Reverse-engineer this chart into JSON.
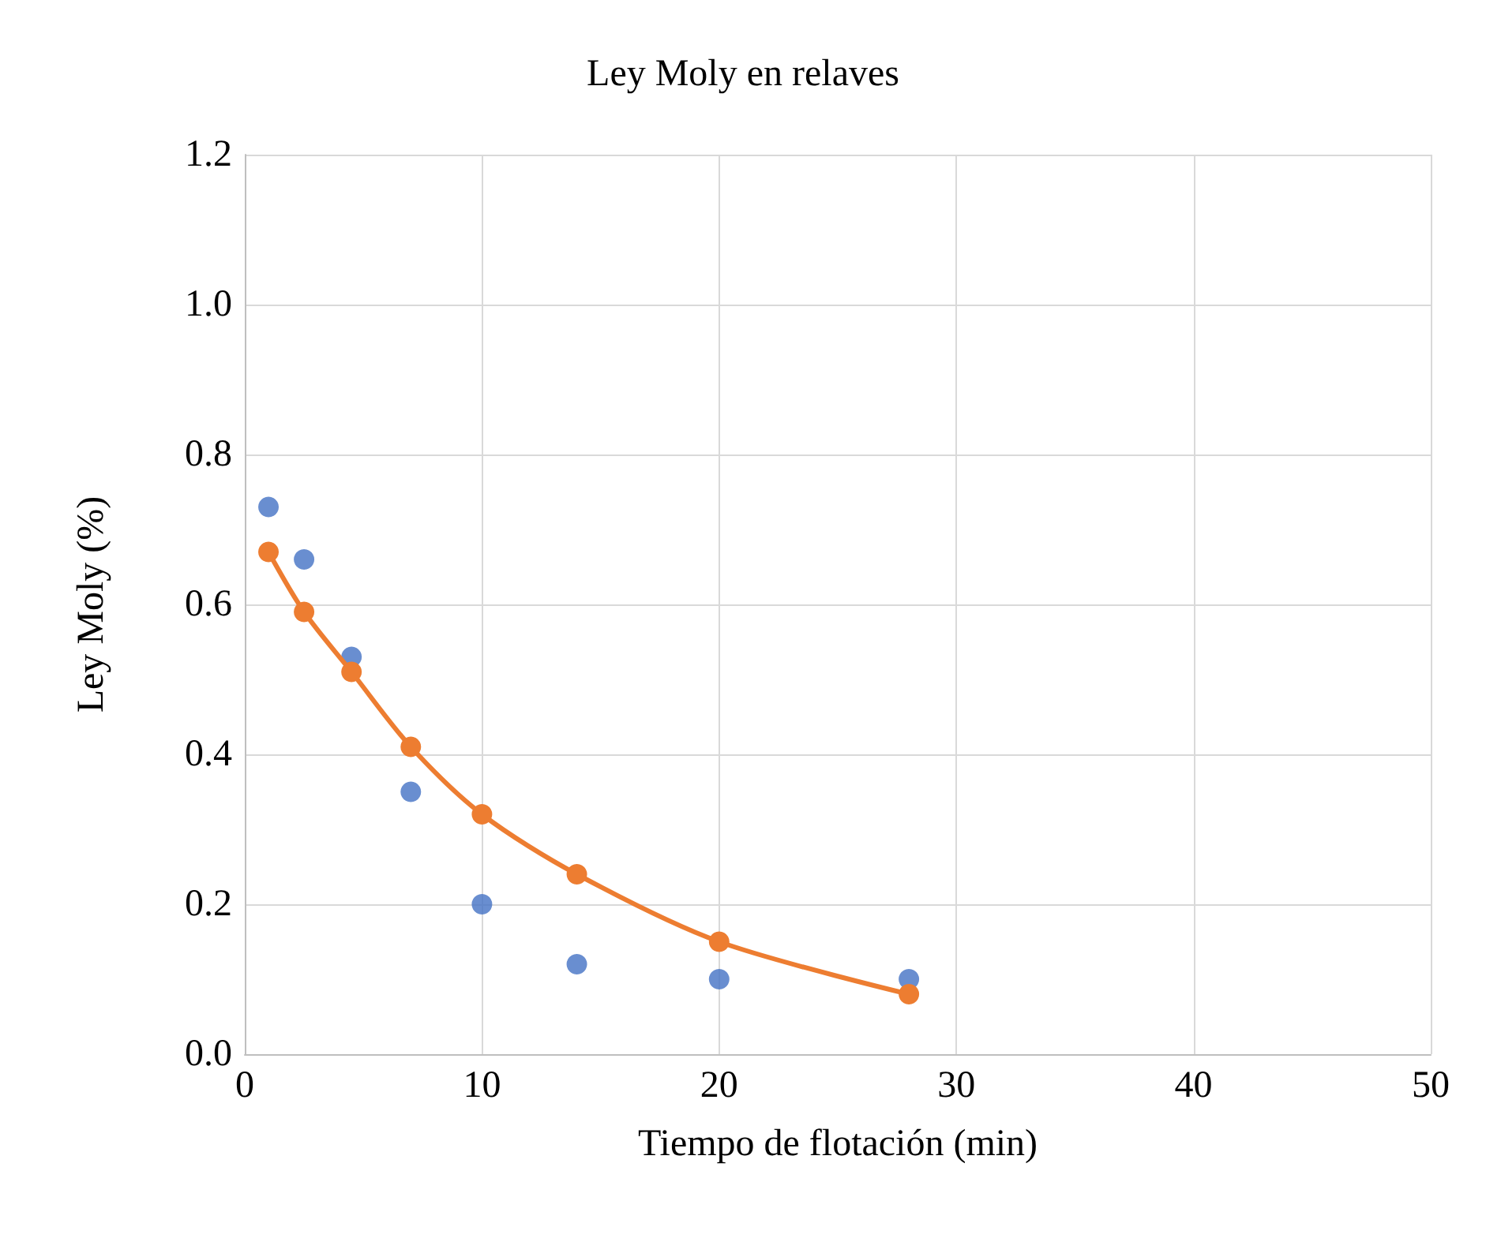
{
  "chart_data": {
    "type": "scatter",
    "title": "Ley Moly en relaves",
    "xlabel": "Tiempo de flotación (min)",
    "ylabel": "Ley Moly (%)",
    "x": [
      1,
      2.5,
      4.5,
      7,
      10,
      14,
      20,
      28
    ],
    "series": [
      {
        "type": "scatter",
        "color": "#4472c4",
        "values": [
          0.73,
          0.66,
          0.53,
          0.35,
          0.2,
          0.12,
          0.1,
          0.1
        ]
      },
      {
        "type": "line",
        "color": "#ed7d31",
        "values": [
          0.67,
          0.59,
          0.51,
          0.41,
          0.32,
          0.24,
          0.15,
          0.08
        ]
      }
    ],
    "xlim": [
      0,
      50
    ],
    "xticks": [
      0,
      10,
      20,
      30,
      40,
      50
    ],
    "ylim": [
      0,
      1.2
    ],
    "yticks": [
      {
        "value": 0,
        "label": "0.0"
      },
      {
        "value": 0.2,
        "label": "0.2"
      },
      {
        "value": 0.4,
        "label": "0.4"
      },
      {
        "value": 0.6,
        "label": "0.6"
      },
      {
        "value": 0.8,
        "label": "0.8"
      },
      {
        "value": 1,
        "label": "1.0"
      },
      {
        "value": 1.2,
        "label": "1.2"
      }
    ],
    "grid": true,
    "marker": "circle",
    "line_style": "solid"
  }
}
